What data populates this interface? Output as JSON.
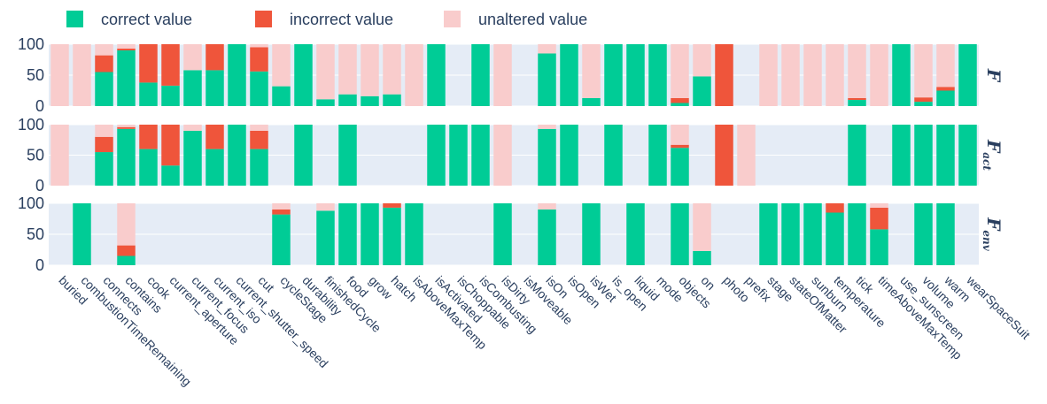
{
  "chart_data": {
    "type": "bar",
    "stacked": true,
    "categories": [
      "buried",
      "combustionTimeRemaining",
      "connects",
      "contains",
      "cook",
      "current_aperture",
      "current_focus",
      "current_iso",
      "current_shutter_speed",
      "cut",
      "cycleStage",
      "durability",
      "finishedCycle",
      "food",
      "grow",
      "hatch",
      "isAboveMaxTemp",
      "isActivated",
      "isChoppable",
      "isCombusting",
      "isDirty",
      "isMoveable",
      "isOn",
      "isOpen",
      "isWet",
      "is_open",
      "liquid",
      "mode",
      "objects",
      "on",
      "photo",
      "prefix",
      "stage",
      "stateOfMatter",
      "sunburn",
      "temperature",
      "tick",
      "timeAboveMaxTemp",
      "use_sunscreen",
      "volume",
      "warm",
      "wearSpaceSuit"
    ],
    "legend": [
      {
        "key": "correct",
        "label": "correct value",
        "color": "#00cc96"
      },
      {
        "key": "incorrect",
        "label": "incorrect value",
        "color": "#ef553b"
      },
      {
        "key": "unaltered",
        "label": "unaltered value",
        "color": "#f9cccc"
      }
    ],
    "ylim": [
      0,
      100
    ],
    "yticks": [
      "0",
      "50",
      "100"
    ],
    "panels": [
      {
        "label": "F",
        "subscript": "",
        "correct": [
          0,
          0,
          55,
          90,
          38,
          33,
          58,
          58,
          100,
          56,
          32,
          100,
          11,
          19,
          16,
          19,
          0,
          100,
          0,
          100,
          0,
          0,
          85,
          100,
          13,
          100,
          100,
          100,
          5,
          48,
          0,
          0,
          0,
          0,
          0,
          0,
          10,
          0,
          100,
          7,
          25,
          100
        ],
        "incorrect": [
          0,
          0,
          27,
          3,
          62,
          67,
          0,
          42,
          0,
          39,
          0,
          0,
          0,
          0,
          0,
          0,
          0,
          0,
          0,
          0,
          0,
          0,
          0,
          0,
          0,
          0,
          0,
          0,
          8,
          0,
          100,
          0,
          0,
          0,
          0,
          0,
          3,
          0,
          0,
          7,
          6,
          0
        ],
        "unaltered": [
          100,
          100,
          18,
          7,
          0,
          0,
          42,
          0,
          0,
          5,
          68,
          0,
          89,
          81,
          84,
          81,
          100,
          0,
          0,
          0,
          100,
          0,
          15,
          0,
          87,
          0,
          0,
          0,
          87,
          52,
          0,
          0,
          100,
          100,
          100,
          100,
          87,
          100,
          0,
          86,
          69,
          0
        ]
      },
      {
        "label": "F",
        "subscript": "act",
        "correct": [
          0,
          0,
          55,
          93,
          60,
          33,
          90,
          60,
          100,
          60,
          0,
          100,
          0,
          100,
          0,
          0,
          0,
          100,
          100,
          100,
          0,
          0,
          93,
          100,
          0,
          100,
          0,
          100,
          62,
          0,
          0,
          0,
          0,
          0,
          0,
          0,
          100,
          0,
          100,
          100,
          100,
          100
        ],
        "incorrect": [
          0,
          0,
          25,
          3,
          40,
          67,
          0,
          40,
          0,
          30,
          0,
          0,
          0,
          0,
          0,
          0,
          0,
          0,
          0,
          0,
          0,
          0,
          0,
          0,
          0,
          0,
          0,
          0,
          5,
          0,
          100,
          0,
          0,
          0,
          0,
          0,
          0,
          0,
          0,
          0,
          0,
          0
        ],
        "unaltered": [
          100,
          0,
          20,
          4,
          0,
          0,
          10,
          0,
          0,
          10,
          0,
          0,
          0,
          0,
          0,
          0,
          0,
          0,
          0,
          0,
          100,
          0,
          7,
          0,
          0,
          0,
          0,
          0,
          33,
          0,
          0,
          100,
          0,
          0,
          0,
          0,
          0,
          0,
          0,
          0,
          0,
          0
        ]
      },
      {
        "label": "F",
        "subscript": "env",
        "correct": [
          0,
          100,
          0,
          15,
          0,
          0,
          0,
          0,
          0,
          0,
          82,
          0,
          88,
          100,
          100,
          93,
          100,
          0,
          0,
          0,
          100,
          0,
          90,
          0,
          100,
          0,
          100,
          0,
          100,
          23,
          0,
          0,
          100,
          100,
          100,
          85,
          100,
          58,
          0,
          100,
          100,
          0
        ],
        "incorrect": [
          0,
          0,
          0,
          17,
          0,
          0,
          0,
          0,
          0,
          0,
          8,
          0,
          0,
          0,
          0,
          7,
          0,
          0,
          0,
          0,
          0,
          0,
          0,
          0,
          0,
          0,
          0,
          0,
          0,
          0,
          0,
          0,
          0,
          0,
          0,
          15,
          0,
          35,
          0,
          0,
          0,
          0
        ],
        "unaltered": [
          0,
          0,
          0,
          68,
          0,
          0,
          0,
          0,
          0,
          0,
          10,
          0,
          12,
          0,
          0,
          0,
          0,
          0,
          0,
          0,
          0,
          0,
          10,
          0,
          0,
          0,
          0,
          0,
          0,
          77,
          0,
          0,
          0,
          0,
          0,
          0,
          0,
          7,
          0,
          0,
          0,
          0
        ]
      }
    ]
  }
}
